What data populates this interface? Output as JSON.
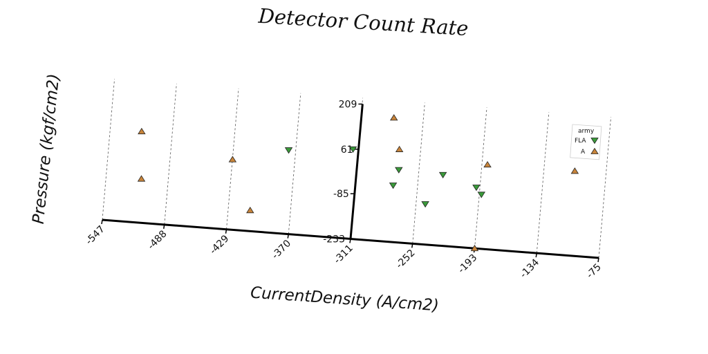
{
  "chart_data": {
    "type": "scatter",
    "title": "Detector Count Rate",
    "xlabel": "CurrentDensity (A/cm2)",
    "ylabel": "Pressure (kgf/cm2)",
    "xlim": [
      -547,
      -75
    ],
    "ylim": [
      -233,
      209
    ],
    "x_ticks": [
      "-547",
      "-488",
      "-429",
      "-370",
      "-311",
      "-252",
      "-193",
      "-134",
      "-75"
    ],
    "y_ticks": [
      "209",
      "61",
      "-85",
      "-233"
    ],
    "grid": "vertical",
    "legend": {
      "title": "army",
      "position": "right"
    },
    "series": [
      {
        "name": "FLA",
        "marker": "triangle-down",
        "color": "#3a9a3a",
        "points": [
          {
            "x": -372,
            "y": 42
          },
          {
            "x": -311,
            "y": 61
          },
          {
            "x": -267,
            "y": 5
          },
          {
            "x": -272,
            "y": -47
          },
          {
            "x": -241,
            "y": -100
          },
          {
            "x": -225,
            "y": 0
          },
          {
            "x": -193,
            "y": -33
          },
          {
            "x": -188,
            "y": -55
          }
        ]
      },
      {
        "name": "A",
        "marker": "triangle-up",
        "color": "#c8843a",
        "points": [
          {
            "x": -512,
            "y": 66
          },
          {
            "x": -511,
            "y": -89
          },
          {
            "x": -425,
            "y": -3
          },
          {
            "x": -407,
            "y": -165
          },
          {
            "x": -273,
            "y": 174
          },
          {
            "x": -267,
            "y": 72
          },
          {
            "x": -183,
            "y": 44
          },
          {
            "x": -100,
            "y": 45
          },
          {
            "x": -193,
            "y": -233
          }
        ]
      }
    ]
  }
}
